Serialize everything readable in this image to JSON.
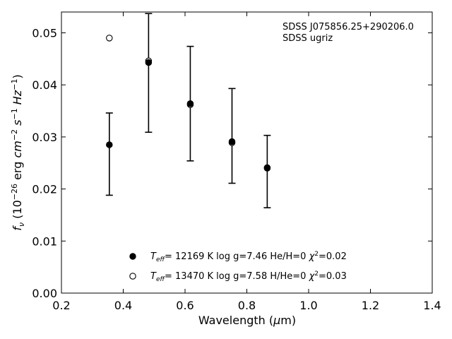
{
  "chart_data": {
    "type": "scatter",
    "title": "",
    "xlabel": "Wavelength (μm)",
    "ylabel": "fν (10⁻²⁶ erg cm⁻² s⁻¹ Hz⁻¹)",
    "xlim": [
      0.2,
      1.4
    ],
    "ylim": [
      0.0,
      0.054
    ],
    "xticks": [
      "0.2",
      "0.4",
      "0.6",
      "0.8",
      "1.0",
      "1.2",
      "1.4"
    ],
    "yticks": [
      "0.00",
      "0.01",
      "0.02",
      "0.03",
      "0.04",
      "0.05"
    ],
    "grid": false,
    "legend_position": "bottom-center",
    "annotations": [
      "SDSS J075856.25+290206.0",
      "SDSS ugriz"
    ],
    "observed": {
      "x": [
        0.355,
        0.482,
        0.617,
        0.752,
        0.866
      ],
      "y": [
        0.0285,
        0.0443,
        0.0364,
        0.0291,
        0.0241
      ],
      "yerr_low": [
        0.0188,
        0.0309,
        0.0254,
        0.0211,
        0.0164
      ],
      "yerr_high": [
        0.0346,
        0.0537,
        0.0474,
        0.0393,
        0.0303
      ]
    },
    "series": [
      {
        "name": "Teff= 12169 K  log g=7.46  He/H=0  χ²=0.02",
        "marker": "filled-circle",
        "x": [
          0.355,
          0.482,
          0.617,
          0.752,
          0.866
        ],
        "y": [
          0.0285,
          0.0443,
          0.0364,
          0.0291,
          0.0241
        ]
      },
      {
        "name": "Teff= 13470 K  log g=7.58  H/He=0  χ²=0.03",
        "marker": "open-circle",
        "x": [
          0.355,
          0.482,
          0.617,
          0.752,
          0.866
        ],
        "y": [
          0.049,
          0.0446,
          0.0362,
          0.0289,
          0.024
        ]
      }
    ]
  }
}
